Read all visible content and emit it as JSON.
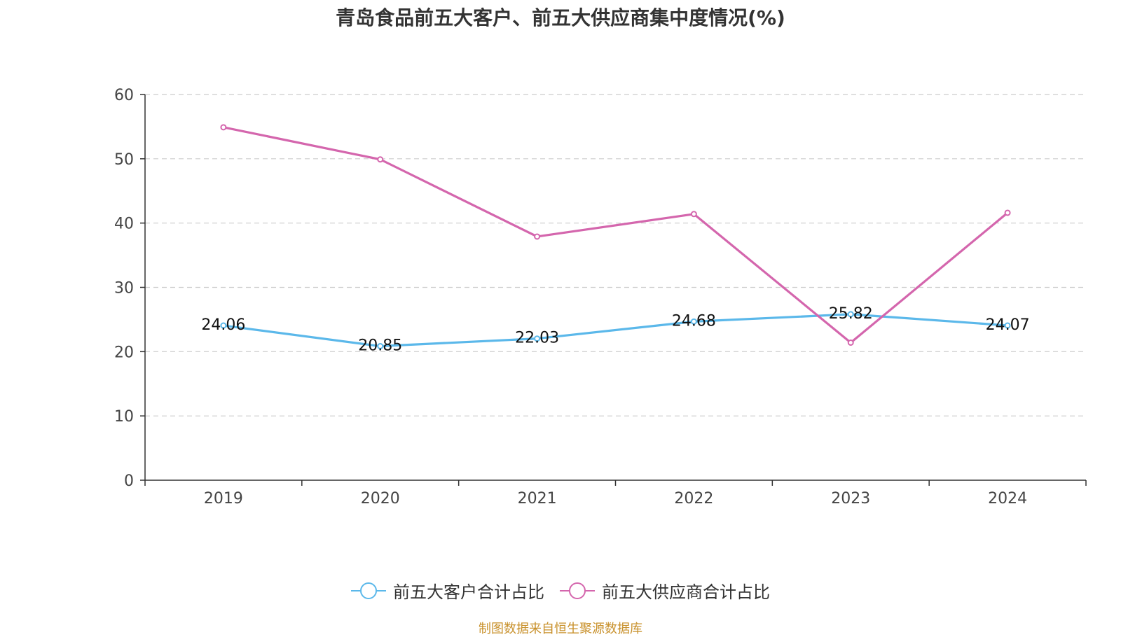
{
  "chart_data": {
    "type": "line",
    "title": "青岛食品前五大客户、前五大供应商集中度情况(%)",
    "categories": [
      "2019",
      "2020",
      "2021",
      "2022",
      "2023",
      "2024"
    ],
    "series": [
      {
        "name": "前五大客户合计占比",
        "values": [
          24.06,
          20.85,
          22.03,
          24.68,
          25.82,
          24.07
        ],
        "labels": [
          "24.06",
          "20.85",
          "22.03",
          "24.68",
          "25.82",
          "24.07"
        ],
        "color": "#5bb8ea",
        "show_labels": true
      },
      {
        "name": "前五大供应商合计占比",
        "values": [
          54.9,
          49.9,
          37.9,
          41.4,
          21.4,
          41.6
        ],
        "color": "#d466ad",
        "show_labels": false
      }
    ],
    "ylim": [
      0,
      60
    ],
    "yticks": [
      0,
      10,
      20,
      30,
      40,
      50,
      60
    ],
    "grid": true,
    "legend_position": "bottom"
  },
  "source_note": "制图数据来自恒生聚源数据库"
}
